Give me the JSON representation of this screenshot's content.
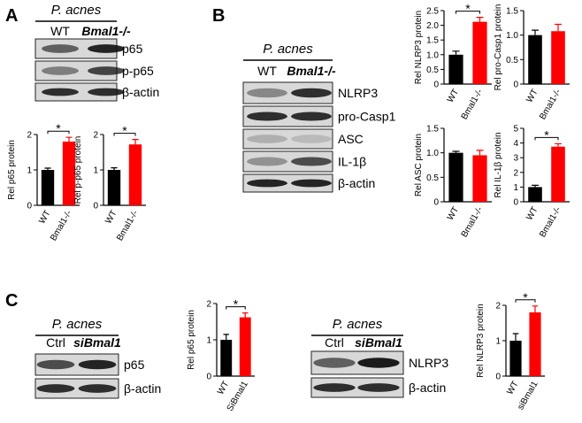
{
  "panel_letters": [
    "A",
    "B",
    "C"
  ],
  "blots": [
    {
      "treatment": "P. acnes",
      "groups": [
        "WT",
        "Bmal1-/-"
      ],
      "proteins": [
        "p65",
        "p-p65",
        "β-actin"
      ]
    },
    {
      "treatment": "P. acnes",
      "groups": [
        "WT",
        "Bmal1-/-"
      ],
      "proteins": [
        "NLRP3",
        "pro-Casp1",
        "ASC",
        "IL-1β",
        "β-actin"
      ]
    },
    {
      "treatment": "P. acnes",
      "groups": [
        "Ctrl",
        "siBmal1"
      ],
      "proteins": [
        "p65",
        "β-actin"
      ]
    },
    {
      "treatment": "P. acnes",
      "groups": [
        "Ctrl",
        "siBmal1"
      ],
      "proteins": [
        "NLRP3",
        "β-actin"
      ]
    }
  ],
  "chart_data": [
    {
      "type": "bar",
      "ylabel": "Rel p65 protein",
      "categories": [
        "WT",
        "Bmal1-/-"
      ],
      "values": [
        1.0,
        1.8
      ],
      "errors": [
        0.05,
        0.12
      ],
      "colors": [
        "#000000",
        "#ff0000"
      ],
      "ylim": [
        0,
        2
      ],
      "yticks": [
        0,
        1,
        2
      ],
      "annotation": "*"
    },
    {
      "type": "bar",
      "ylabel": "Rel p-p65 protein",
      "categories": [
        "WT",
        "Bmal1-/-"
      ],
      "values": [
        1.0,
        1.72
      ],
      "errors": [
        0.06,
        0.14
      ],
      "colors": [
        "#000000",
        "#ff0000"
      ],
      "ylim": [
        0,
        2
      ],
      "yticks": [
        0,
        1,
        2
      ],
      "annotation": "*"
    },
    {
      "type": "bar",
      "ylabel": "Rel NLRP3 protein",
      "categories": [
        "WT",
        "Bmal1-/-"
      ],
      "values": [
        1.0,
        2.12
      ],
      "errors": [
        0.12,
        0.15
      ],
      "colors": [
        "#000000",
        "#ff0000"
      ],
      "ylim": [
        0,
        2.5
      ],
      "yticks": [
        0,
        0.5,
        {
          "value": 1,
          "label": "1.0"
        },
        1.5,
        {
          "value": 2,
          "label": "2.0"
        },
        2.5
      ],
      "annotation": "*"
    },
    {
      "type": "bar",
      "ylabel": "Rel pro-Casp1 protein",
      "categories": [
        "WT",
        "Bmal1-/-"
      ],
      "values": [
        1.0,
        1.08
      ],
      "errors": [
        0.1,
        0.14
      ],
      "colors": [
        "#000000",
        "#ff0000"
      ],
      "ylim": [
        0,
        1.5
      ],
      "yticks": [
        0,
        0.5,
        {
          "value": 1,
          "label": "1.0"
        },
        1.5
      ]
    },
    {
      "type": "bar",
      "ylabel": "Rel ASC protein",
      "categories": [
        "WT",
        "Bmal1-/-"
      ],
      "values": [
        1.0,
        0.95
      ],
      "errors": [
        0.03,
        0.1
      ],
      "colors": [
        "#000000",
        "#ff0000"
      ],
      "ylim": [
        0,
        1.5
      ],
      "yticks": [
        0,
        0.5,
        {
          "value": 1,
          "label": "1.0"
        },
        1.5
      ]
    },
    {
      "type": "bar",
      "ylabel": "Rel IL-1β protein",
      "categories": [
        "WT",
        "Bmal1-/-"
      ],
      "values": [
        1.0,
        3.75
      ],
      "errors": [
        0.12,
        0.2
      ],
      "colors": [
        "#000000",
        "#ff0000"
      ],
      "ylim": [
        0,
        5
      ],
      "yticks": [
        0,
        1,
        2,
        3,
        4,
        5
      ],
      "annotation": "*"
    },
    {
      "type": "bar",
      "ylabel": "Rel p65 protein",
      "categories": [
        "WT",
        "SiBmal1"
      ],
      "values": [
        1.0,
        1.62
      ],
      "errors": [
        0.15,
        0.12
      ],
      "colors": [
        "#000000",
        "#ff0000"
      ],
      "ylim": [
        0,
        2
      ],
      "yticks": [
        0,
        1,
        2
      ],
      "annotation": "*"
    },
    {
      "type": "bar",
      "ylabel": "Rel NLRP3 protein",
      "categories": [
        "WT",
        "siBmal1"
      ],
      "values": [
        1.0,
        1.8
      ],
      "errors": [
        0.2,
        0.18
      ],
      "colors": [
        "#000000",
        "#ff0000"
      ],
      "ylim": [
        0,
        2
      ],
      "yticks": [
        0,
        1,
        2
      ],
      "annotation": "*"
    }
  ]
}
